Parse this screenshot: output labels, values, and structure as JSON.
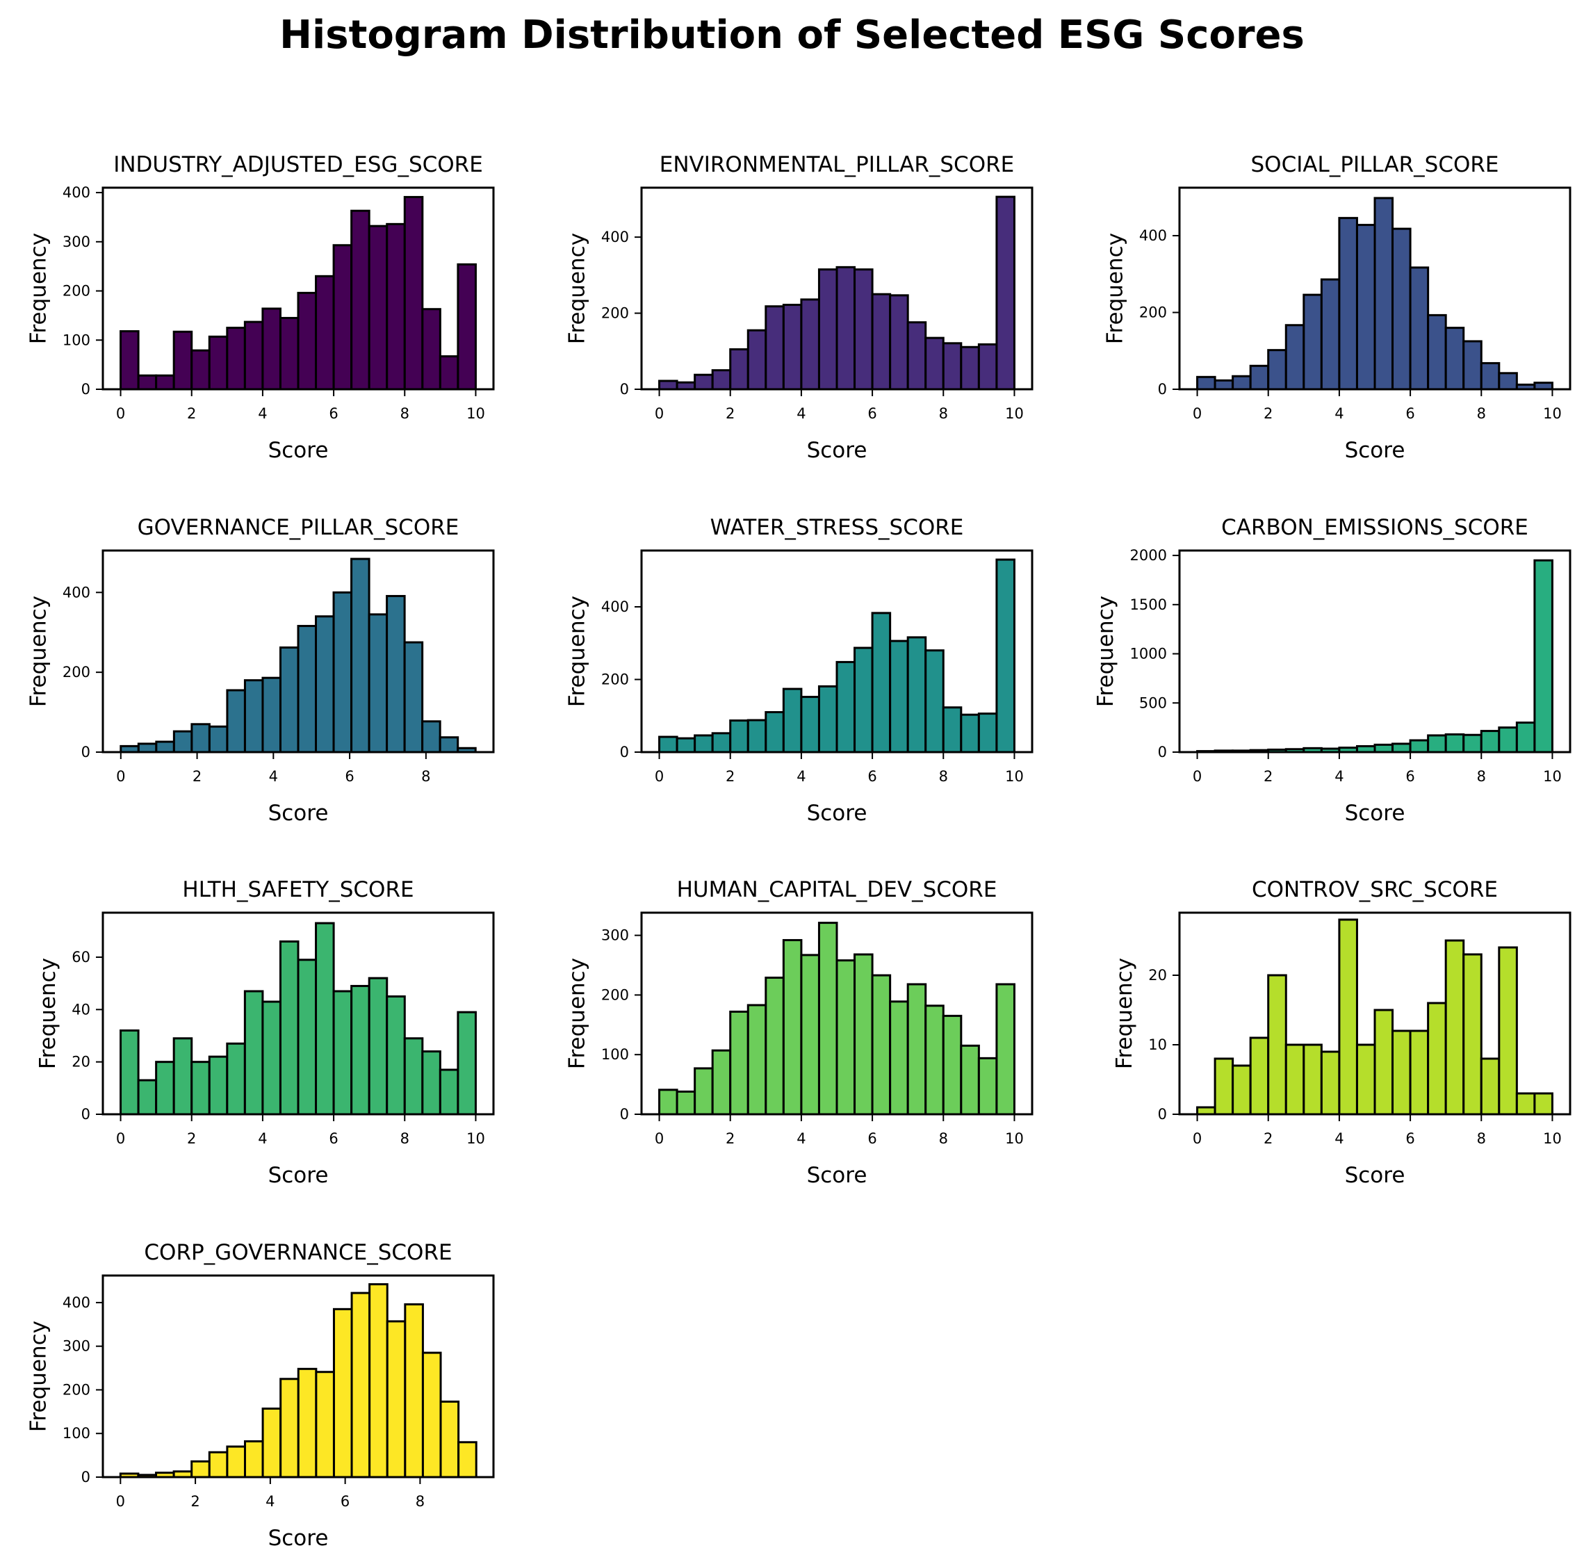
{
  "figure": {
    "title": "Histogram Distribution of Selected ESG Scores"
  },
  "chart_data": [
    {
      "type": "bar",
      "title": "INDUSTRY_ADJUSTED_ESG_SCORE",
      "xlabel": "Score",
      "ylabel": "Frequency",
      "color": "#440154",
      "bin_start": 0,
      "bin_width": 0.5,
      "xlim": [
        -0.5,
        10.5
      ],
      "xticks": [
        0,
        2,
        4,
        6,
        8,
        10
      ],
      "ylim": [
        0,
        410
      ],
      "yticks": [
        0,
        100,
        200,
        300,
        400
      ],
      "values": [
        118,
        28,
        28,
        117,
        79,
        107,
        125,
        137,
        164,
        145,
        196,
        230,
        293,
        363,
        332,
        336,
        391,
        163,
        67,
        254
      ]
    },
    {
      "type": "bar",
      "title": "ENVIRONMENTAL_PILLAR_SCORE",
      "xlabel": "Score",
      "ylabel": "Frequency",
      "color": "#472d7b",
      "bin_start": 0,
      "bin_width": 0.5,
      "xlim": [
        -0.5,
        10.5
      ],
      "xticks": [
        0,
        2,
        4,
        6,
        8,
        10
      ],
      "ylim": [
        0,
        530
      ],
      "yticks": [
        0,
        200,
        400
      ],
      "values": [
        22,
        18,
        38,
        50,
        105,
        155,
        218,
        222,
        236,
        315,
        321,
        315,
        250,
        247,
        176,
        135,
        121,
        111,
        118,
        506
      ]
    },
    {
      "type": "bar",
      "title": "SOCIAL_PILLAR_SCORE",
      "xlabel": "Score",
      "ylabel": "Frequency",
      "color": "#3b528b",
      "bin_start": 0,
      "bin_width": 0.5,
      "xlim": [
        -0.5,
        10.5
      ],
      "xticks": [
        0,
        2,
        4,
        6,
        8,
        10
      ],
      "ylim": [
        0,
        525
      ],
      "yticks": [
        0,
        200,
        400
      ],
      "values": [
        32,
        23,
        34,
        61,
        102,
        167,
        246,
        286,
        446,
        428,
        498,
        418,
        317,
        193,
        160,
        125,
        68,
        42,
        12,
        17
      ]
    },
    {
      "type": "bar",
      "title": "GOVERNANCE_PILLAR_SCORE",
      "xlabel": "Score",
      "ylabel": "Frequency",
      "color": "#2c728e",
      "bin_start": 0,
      "bin_width": 0.465,
      "xlim": [
        -0.47,
        9.77
      ],
      "xticks": [
        0,
        2,
        4,
        6,
        8
      ],
      "ylim": [
        0,
        505
      ],
      "yticks": [
        0,
        200,
        400
      ],
      "values": [
        15,
        21,
        26,
        52,
        70,
        64,
        155,
        180,
        186,
        262,
        316,
        340,
        400,
        484,
        345,
        391,
        275,
        77,
        37,
        10
      ]
    },
    {
      "type": "bar",
      "title": "WATER_STRESS_SCORE",
      "xlabel": "Score",
      "ylabel": "Frequency",
      "color": "#21918c",
      "bin_start": 0,
      "bin_width": 0.5,
      "xlim": [
        -0.5,
        10.5
      ],
      "xticks": [
        0,
        2,
        4,
        6,
        8,
        10
      ],
      "ylim": [
        0,
        555
      ],
      "yticks": [
        0,
        200,
        400
      ],
      "values": [
        42,
        38,
        46,
        52,
        87,
        88,
        110,
        174,
        152,
        181,
        248,
        287,
        383,
        306,
        316,
        280,
        123,
        103,
        106,
        530
      ]
    },
    {
      "type": "bar",
      "title": "CARBON_EMISSIONS_SCORE",
      "xlabel": "Score",
      "ylabel": "Frequency",
      "color": "#28ae80",
      "bin_start": 0,
      "bin_width": 0.5,
      "xlim": [
        -0.5,
        10.5
      ],
      "xticks": [
        0,
        2,
        4,
        6,
        8,
        10
      ],
      "ylim": [
        0,
        2050
      ],
      "yticks": [
        0,
        500,
        1000,
        1500,
        2000
      ],
      "values": [
        10,
        15,
        15,
        20,
        25,
        30,
        40,
        35,
        45,
        60,
        75,
        85,
        120,
        170,
        180,
        175,
        215,
        250,
        300,
        1950
      ]
    },
    {
      "type": "bar",
      "title": "HLTH_SAFETY_SCORE",
      "xlabel": "Score",
      "ylabel": "Frequency",
      "color": "#3bb56f",
      "bin_start": 0,
      "bin_width": 0.5,
      "xlim": [
        -0.5,
        10.5
      ],
      "xticks": [
        0,
        2,
        4,
        6,
        8,
        10
      ],
      "ylim": [
        0,
        77
      ],
      "yticks": [
        0,
        20,
        40,
        60
      ],
      "values": [
        32,
        13,
        20,
        29,
        20,
        22,
        27,
        47,
        43,
        66,
        59,
        73,
        47,
        49,
        52,
        45,
        29,
        24,
        17,
        39
      ]
    },
    {
      "type": "bar",
      "title": "HUMAN_CAPITAL_DEV_SCORE",
      "xlabel": "Score",
      "ylabel": "Frequency",
      "color": "#6ccd5a",
      "bin_start": 0,
      "bin_width": 0.5,
      "xlim": [
        -0.5,
        10.5
      ],
      "xticks": [
        0,
        2,
        4,
        6,
        8,
        10
      ],
      "ylim": [
        0,
        338
      ],
      "yticks": [
        0,
        100,
        200,
        300
      ],
      "values": [
        41,
        38,
        77,
        107,
        172,
        183,
        229,
        292,
        267,
        321,
        258,
        268,
        233,
        189,
        218,
        182,
        165,
        115,
        94,
        218
      ]
    },
    {
      "type": "bar",
      "title": "CONTROV_SRC_SCORE",
      "xlabel": "Score",
      "ylabel": "Frequency",
      "color": "#b5de2b",
      "bin_start": 0,
      "bin_width": 0.5,
      "xlim": [
        -0.5,
        10.5
      ],
      "xticks": [
        0,
        2,
        4,
        6,
        8,
        10
      ],
      "ylim": [
        0,
        29
      ],
      "yticks": [
        0,
        10,
        20
      ],
      "values": [
        1,
        8,
        7,
        11,
        20,
        10,
        10,
        9,
        28,
        10,
        15,
        12,
        12,
        16,
        25,
        23,
        8,
        24,
        3,
        3
      ]
    },
    {
      "type": "bar",
      "title": "CORP_GOVERNANCE_SCORE",
      "xlabel": "Score",
      "ylabel": "Frequency",
      "color": "#fde725",
      "bin_start": 0,
      "bin_width": 0.475,
      "xlim": [
        -0.47,
        9.96
      ],
      "xticks": [
        0,
        2,
        4,
        6,
        8
      ],
      "ylim": [
        0,
        462
      ],
      "yticks": [
        0,
        100,
        200,
        300,
        400
      ],
      "values": [
        8,
        5,
        10,
        13,
        36,
        57,
        70,
        82,
        157,
        225,
        248,
        241,
        385,
        422,
        442,
        357,
        396,
        285,
        173,
        80
      ]
    }
  ]
}
